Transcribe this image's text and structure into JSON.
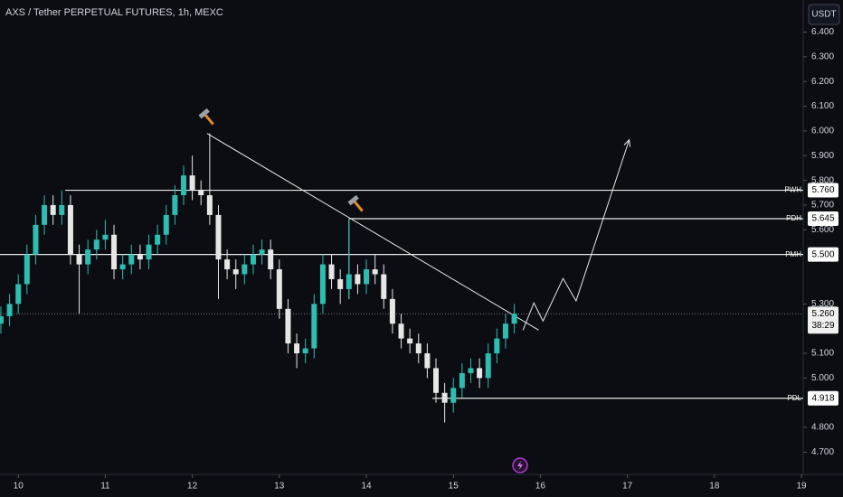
{
  "chart_data": {
    "type": "candlestick",
    "title": "AXS / Tether PERPETUAL FUTURES, 1h, MEXC",
    "currency": "USDT",
    "up_color": "#2ebdb0",
    "down_color": "#e6e6e6",
    "xlim": [
      9.79,
      19.02
    ],
    "xticks": [
      10,
      11,
      12,
      13,
      14,
      15,
      16,
      17,
      18,
      19
    ],
    "ylim": [
      4.61,
      6.53
    ],
    "yticks": [
      {
        "value": 6.4,
        "label": "6.400"
      },
      {
        "value": 6.3,
        "label": "6.300"
      },
      {
        "value": 6.2,
        "label": "6.200"
      },
      {
        "value": 6.1,
        "label": "6.100"
      },
      {
        "value": 6.0,
        "label": "6.000"
      },
      {
        "value": 5.9,
        "label": "5.900"
      },
      {
        "value": 5.8,
        "label": "5.800"
      },
      {
        "value": 5.7,
        "label": "5.700"
      },
      {
        "value": 5.6,
        "label": "5.600"
      },
      {
        "value": 5.3,
        "label": "5.300"
      },
      {
        "value": 5.1,
        "label": "5.100"
      },
      {
        "value": 5.0,
        "label": "5.000"
      },
      {
        "value": 4.8,
        "label": "4.800"
      },
      {
        "value": 4.7,
        "label": "4.700"
      }
    ],
    "x": [
      9.8,
      9.9,
      10.0,
      10.1,
      10.2,
      10.3,
      10.4,
      10.5,
      10.6,
      10.7,
      10.8,
      10.9,
      11.0,
      11.1,
      11.2,
      11.3,
      11.4,
      11.5,
      11.6,
      11.7,
      11.8,
      11.9,
      12.0,
      12.1,
      12.2,
      12.3,
      12.4,
      12.5,
      12.6,
      12.7,
      12.8,
      12.9,
      13.0,
      13.1,
      13.2,
      13.3,
      13.4,
      13.5,
      13.6,
      13.7,
      13.8,
      13.9,
      14.0,
      14.1,
      14.2,
      14.3,
      14.4,
      14.5,
      14.6,
      14.7,
      14.8,
      14.9,
      15.0,
      15.1,
      15.2,
      15.3,
      15.4,
      15.5,
      15.6,
      15.7
    ],
    "open": [
      5.22,
      5.25,
      5.3,
      5.38,
      5.5,
      5.62,
      5.7,
      5.66,
      5.7,
      5.5,
      5.46,
      5.52,
      5.56,
      5.58,
      5.44,
      5.46,
      5.5,
      5.48,
      5.54,
      5.58,
      5.66,
      5.74,
      5.82,
      5.76,
      5.74,
      5.66,
      5.48,
      5.44,
      5.42,
      5.46,
      5.5,
      5.52,
      5.44,
      5.28,
      5.14,
      5.1,
      5.12,
      5.3,
      5.46,
      5.4,
      5.36,
      5.42,
      5.38,
      5.44,
      5.42,
      5.32,
      5.22,
      5.16,
      5.14,
      5.1,
      5.04,
      4.94,
      4.9,
      4.96,
      5.02,
      5.04,
      5.0,
      5.1,
      5.16,
      5.22
    ],
    "high": [
      5.29,
      5.34,
      5.42,
      5.54,
      5.66,
      5.74,
      5.74,
      5.76,
      5.74,
      5.54,
      5.56,
      5.6,
      5.64,
      5.62,
      5.5,
      5.54,
      5.54,
      5.58,
      5.62,
      5.7,
      5.78,
      5.86,
      5.9,
      5.8,
      5.99,
      5.7,
      5.52,
      5.48,
      5.5,
      5.54,
      5.56,
      5.56,
      5.48,
      5.32,
      5.18,
      5.16,
      5.34,
      5.5,
      5.5,
      5.44,
      5.645,
      5.46,
      5.48,
      5.5,
      5.46,
      5.36,
      5.26,
      5.2,
      5.18,
      5.14,
      5.08,
      4.98,
      5.0,
      5.06,
      5.08,
      5.08,
      5.14,
      5.2,
      5.26,
      5.3
    ],
    "low": [
      5.18,
      5.21,
      5.26,
      5.34,
      5.46,
      5.58,
      5.62,
      5.62,
      5.46,
      5.26,
      5.42,
      5.48,
      5.52,
      5.4,
      5.4,
      5.42,
      5.44,
      5.44,
      5.5,
      5.54,
      5.62,
      5.7,
      5.72,
      5.7,
      5.62,
      5.32,
      5.4,
      5.36,
      5.38,
      5.42,
      5.46,
      5.4,
      5.24,
      5.1,
      5.04,
      5.06,
      5.08,
      5.26,
      5.36,
      5.3,
      5.32,
      5.34,
      5.34,
      5.38,
      5.28,
      5.18,
      5.12,
      5.1,
      5.06,
      5.0,
      4.9,
      4.82,
      4.86,
      4.92,
      4.98,
      4.96,
      4.96,
      5.06,
      5.12,
      5.18
    ],
    "close": [
      5.25,
      5.3,
      5.38,
      5.5,
      5.62,
      5.7,
      5.66,
      5.7,
      5.5,
      5.46,
      5.52,
      5.56,
      5.58,
      5.44,
      5.46,
      5.5,
      5.48,
      5.54,
      5.58,
      5.66,
      5.74,
      5.82,
      5.76,
      5.74,
      5.66,
      5.48,
      5.44,
      5.42,
      5.46,
      5.5,
      5.52,
      5.44,
      5.28,
      5.14,
      5.1,
      5.12,
      5.3,
      5.46,
      5.4,
      5.36,
      5.42,
      5.38,
      5.44,
      5.42,
      5.32,
      5.22,
      5.16,
      5.14,
      5.1,
      5.04,
      4.94,
      4.9,
      4.96,
      5.02,
      5.04,
      5.0,
      5.1,
      5.16,
      5.22,
      5.26
    ],
    "levels": [
      {
        "name": "PWH",
        "value": 5.76,
        "label": "5.760",
        "start": 10.54
      },
      {
        "name": "PDH",
        "value": 5.645,
        "label": "5.645",
        "start": 13.8
      },
      {
        "name": "PMH",
        "value": 5.5,
        "label": "5.500",
        "start": 9.79
      },
      {
        "name": "PDL",
        "value": 4.918,
        "label": "4.918",
        "start": 14.76
      }
    ],
    "last_price": {
      "value": 5.26,
      "label": "5.260",
      "countdown": "38:29"
    },
    "trendline": {
      "x": [
        12.17,
        15.98
      ],
      "y": [
        5.99,
        5.194
      ]
    },
    "vline": {
      "x": [
        13.8,
        13.8
      ],
      "y": [
        5.32,
        5.645
      ]
    },
    "projection": {
      "x": [
        15.8,
        15.925,
        16.03,
        16.26,
        16.41,
        17.02
      ],
      "y": [
        5.194,
        5.304,
        5.231,
        5.403,
        5.312,
        5.964
      ]
    }
  }
}
